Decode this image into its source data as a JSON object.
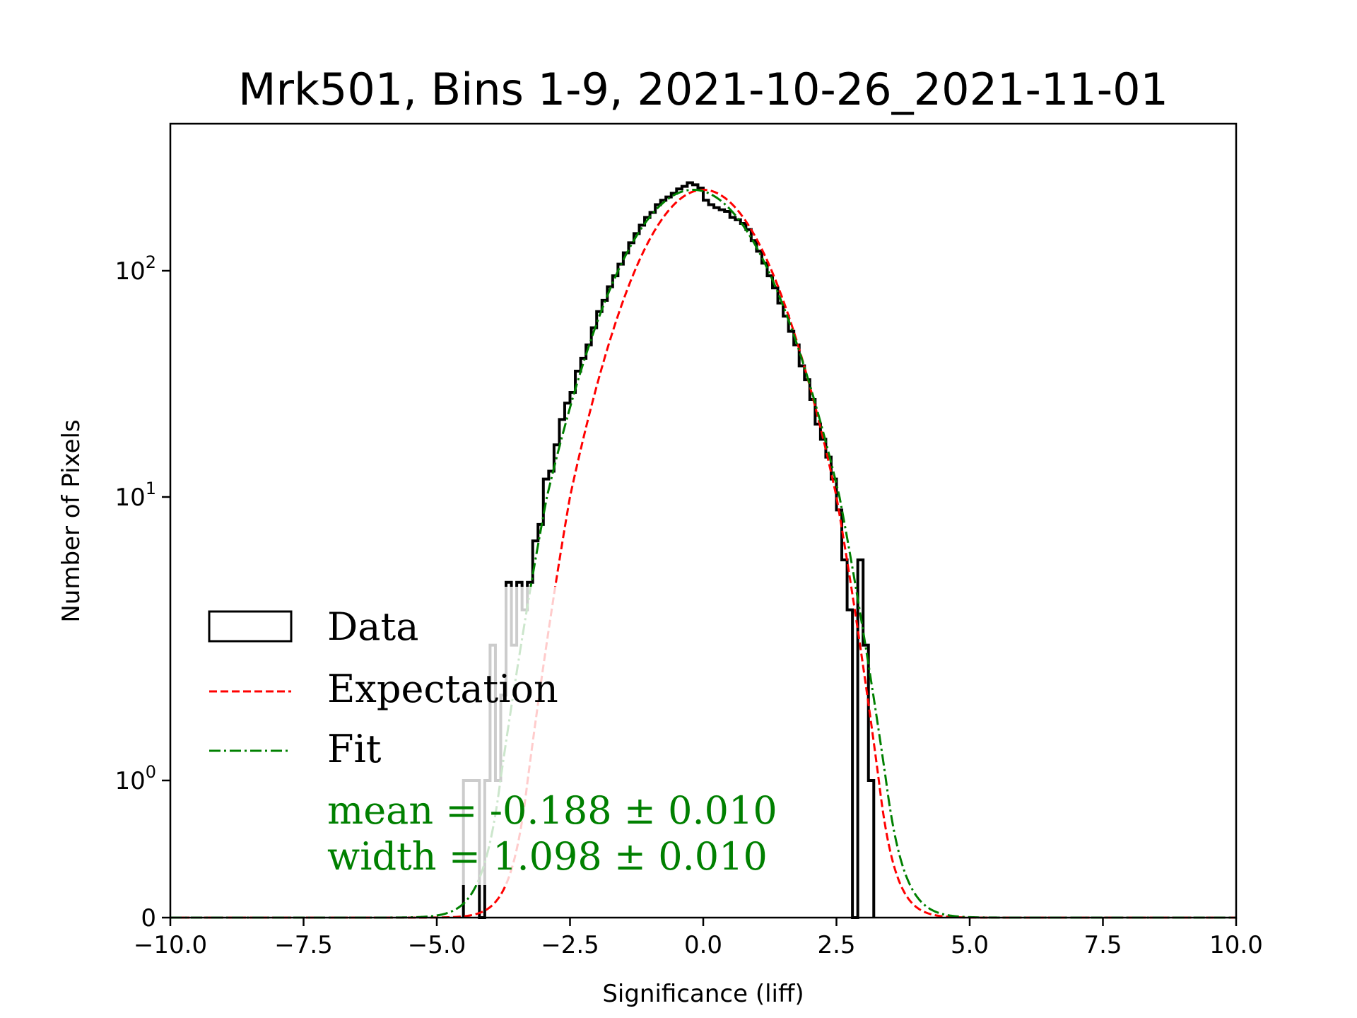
{
  "chart_data": {
    "type": "histogram",
    "title": "Mrk501, Bins 1-9, 2021-10-26_2021-11-01",
    "xlabel": "Significance (liff)",
    "ylabel": "Number of Pixels",
    "xlim": [
      -10,
      10
    ],
    "yscale": "symlog",
    "ylim": [
      0,
      420
    ],
    "x_ticks": [
      -10,
      -7.5,
      -5,
      -2.5,
      0,
      2.5,
      5,
      7.5,
      10
    ],
    "x_tick_labels": [
      "−10.0",
      "−7.5",
      "−5.0",
      "−2.5",
      "0.0",
      "2.5",
      "5.0",
      "7.5",
      "10.0"
    ],
    "y_ticks": [
      {
        "value": 0,
        "base": "0",
        "exp": ""
      },
      {
        "value": 1,
        "base": "10",
        "exp": "0"
      },
      {
        "value": 10,
        "base": "10",
        "exp": "1"
      },
      {
        "value": 100,
        "base": "10",
        "exp": "2"
      }
    ],
    "grid": false,
    "legend": {
      "placement": "lower-left",
      "entries": [
        {
          "label": "Data",
          "style": "step",
          "color": "#000000"
        },
        {
          "label": "Expectation",
          "style": "dashed",
          "color": "#ff0000"
        },
        {
          "label": "Fit",
          "style": "dashdot",
          "color": "#008000"
        }
      ]
    },
    "annotations": {
      "mean": "mean = -0.188 ± 0.010",
      "width": "width = 1.098 ± 0.010",
      "color": "#008000"
    },
    "histogram": {
      "bin_start": -4.5,
      "bin_width": 0.1,
      "counts": [
        1,
        1,
        1,
        0,
        1,
        3,
        1,
        2,
        5,
        3,
        5,
        4,
        5,
        7,
        8,
        12,
        13,
        17,
        22,
        26,
        29,
        36,
        41,
        47,
        56,
        66,
        74,
        85,
        95,
        107,
        120,
        133,
        146,
        159,
        172,
        181,
        196,
        205,
        212,
        220,
        230,
        236,
        245,
        240,
        232,
        205,
        196,
        190,
        186,
        183,
        172,
        168,
        162,
        152,
        136,
        122,
        108,
        95,
        84,
        72,
        63,
        54,
        47,
        38,
        33,
        27,
        21,
        18,
        15,
        12,
        9,
        6,
        4,
        0,
        6,
        3,
        1
      ]
    },
    "expectation": {
      "mean": 0.0,
      "width": 1.0,
      "amplitude": 228,
      "color": "#ff0000"
    },
    "fit": {
      "mean": -0.188,
      "width": 1.098,
      "amplitude": 228,
      "color": "#008000"
    }
  }
}
